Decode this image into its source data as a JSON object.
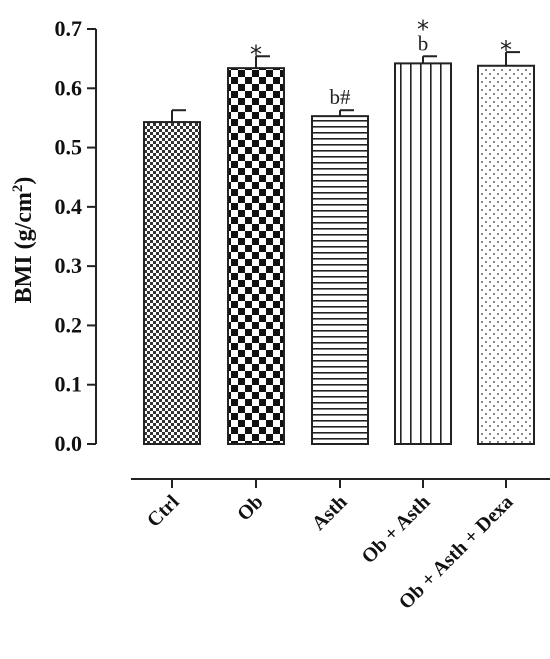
{
  "chart_data": {
    "type": "bar",
    "ylabel_prefix": "BMI (g/cm",
    "ylabel_sup": "2",
    "ylabel_suffix": ")",
    "xlabel": "",
    "ylim": [
      0,
      0.7
    ],
    "yticks": [
      "0.0",
      "0.1",
      "0.2",
      "0.3",
      "0.4",
      "0.5",
      "0.6",
      "0.7"
    ],
    "grid": false,
    "categories": [
      "Ctrl",
      "Ob",
      "Asth",
      "Ob + Asth",
      "Ob + Asth + Dexa"
    ],
    "values": [
      0.543,
      0.634,
      0.553,
      0.642,
      0.638
    ],
    "errors": [
      0.02,
      0.02,
      0.01,
      0.012,
      0.023
    ],
    "patterns": [
      "fine-checker",
      "coarse-checker",
      "horizontal-lines",
      "vertical-lines",
      "dots"
    ],
    "annotations": [
      [],
      [
        "*"
      ],
      [
        "b#"
      ],
      [
        "b",
        "*"
      ],
      [
        "*"
      ]
    ]
  }
}
